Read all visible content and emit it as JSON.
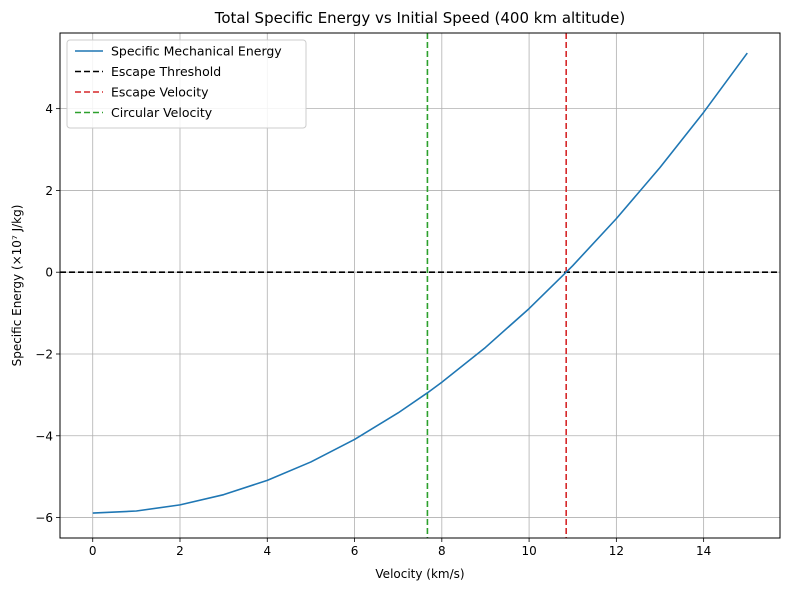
{
  "chart_data": {
    "type": "line",
    "title": "Total Specific Energy vs Initial Speed (400 km altitude)",
    "xlabel": "Velocity (km/s)",
    "ylabel": "Specific Energy (×10⁷ J/kg)",
    "xlim": [
      -0.75,
      15.75
    ],
    "ylim": [
      -6.5,
      5.85
    ],
    "grid": true,
    "legend_position": "top-left",
    "x_ticks": [
      0,
      2,
      4,
      6,
      8,
      10,
      12,
      14
    ],
    "x_tick_labels": [
      "0",
      "2",
      "4",
      "6",
      "8",
      "10",
      "12",
      "14"
    ],
    "y_ticks": [
      -6,
      -4,
      -2,
      0,
      2,
      4
    ],
    "y_tick_labels": [
      "−6",
      "−4",
      "−2",
      "0",
      "2",
      "4"
    ],
    "series": [
      {
        "name": "Specific Mechanical Energy",
        "color": "#1f77b4",
        "style": "solid",
        "x": [
          0,
          1,
          2,
          3,
          4,
          5,
          6,
          7,
          7.67,
          8,
          9,
          10,
          10.85,
          11,
          12,
          13,
          14,
          15
        ],
        "y": [
          -5.89,
          -5.84,
          -5.69,
          -5.44,
          -5.09,
          -4.64,
          -4.09,
          -3.44,
          -2.95,
          -2.69,
          -1.84,
          -0.89,
          0.0,
          0.16,
          1.31,
          2.56,
          3.91,
          5.36
        ]
      }
    ],
    "reference_lines": [
      {
        "name": "Escape Threshold",
        "orientation": "horizontal",
        "value": 0,
        "color": "#000000",
        "style": "dashed"
      },
      {
        "name": "Escape Velocity",
        "orientation": "vertical",
        "value": 10.85,
        "color": "#d62728",
        "style": "dashed"
      },
      {
        "name": "Circular Velocity",
        "orientation": "vertical",
        "value": 7.67,
        "color": "#2ca02c",
        "style": "dashed"
      }
    ]
  }
}
